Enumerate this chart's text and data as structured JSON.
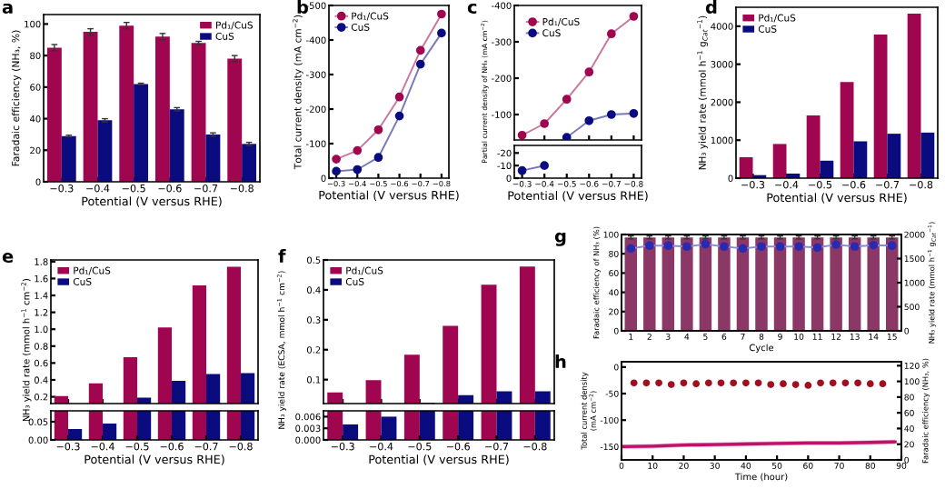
{
  "chart_data": [
    {
      "type": "bar",
      "title": "a",
      "xlabel": "Potential (V versus RHE)",
      "ylabel": "Faradaic efficiency (NH₃, %)",
      "categories": [
        "−0.3",
        "−0.4",
        "−0.5",
        "−0.6",
        "−0.7",
        "−0.8"
      ],
      "ylim": [
        0,
        106
      ],
      "yticks": [
        0,
        20,
        40,
        60,
        80,
        100
      ],
      "legend": "top right",
      "series": [
        {
          "name": "Pd₁/CuS",
          "color": "#a0064f",
          "values": [
            85,
            95,
            99,
            92,
            88,
            78
          ],
          "errors": [
            2,
            2,
            2,
            2,
            1,
            2
          ]
        },
        {
          "name": "CuS",
          "color": "#0b0b80",
          "values": [
            29,
            39,
            62,
            46,
            30,
            24
          ],
          "errors": [
            0.5,
            1,
            0.5,
            1,
            1,
            1
          ]
        }
      ]
    },
    {
      "type": "line",
      "title": "b",
      "xlabel": "Potential (V versus RHE)",
      "ylabel": "Total current density (mA cm$^{−2}$)",
      "categories": [
        "−0.3",
        "−0.4",
        "−0.5",
        "−0.6",
        "−0.7",
        "−0.8"
      ],
      "ylim": [
        0,
        -500
      ],
      "yticks": [
        0,
        -100,
        -200,
        -300,
        -400,
        -500
      ],
      "legend": "top left",
      "marker": "circle",
      "series": [
        {
          "name": "Pd₁/CuS",
          "color": "#a0064f",
          "values": [
            -55,
            -80,
            -140,
            -235,
            -370,
            -475
          ]
        },
        {
          "name": "CuS",
          "color": "#0b0b80",
          "values": [
            -20,
            -25,
            -60,
            -180,
            -330,
            -420
          ]
        }
      ]
    },
    {
      "type": "line",
      "title": "c",
      "ylabel": "Partial current density of NH₃ (mA cm$^{−2}$)",
      "categories": [
        "−0.3",
        "−0.4",
        "−0.5",
        "−0.6",
        "−0.7",
        "−0.8"
      ],
      "ylim": [
        -30,
        -400
      ],
      "yticks": [
        -100,
        -200,
        -300,
        -400
      ],
      "tick_labels": "y",
      "legend": "top left",
      "marker": "circle",
      "series": [
        {
          "name": "Pd₁/CuS",
          "color": "#a0064f",
          "values": [
            -43,
            -75,
            -142,
            -217,
            -322,
            -370
          ]
        },
        {
          "name": "CuS",
          "color": "#0b0b80",
          "values": [
            null,
            null,
            -37,
            -83,
            -100,
            -103
          ]
        }
      ]
    },
    {
      "type": "line",
      "xlabel": "Potential (V versus RHE)",
      "categories": [
        "−0.3",
        "−0.4",
        "−0.5",
        "−0.6",
        "−0.7",
        "−0.8"
      ],
      "ylim": [
        0,
        -26
      ],
      "yticks": [
        0,
        -10,
        -20
      ],
      "marker": "circle",
      "series": [
        {
          "color": "#0b0b80",
          "values": [
            -6,
            -10,
            null,
            null,
            null,
            null
          ]
        }
      ]
    },
    {
      "type": "bar",
      "title": "d",
      "xlabel": "Potential (V versus RHE)",
      "ylabel": "NH₃ yield rate (mmol h$^{−1}$ g$_{Cat}$$^{−1}$)",
      "categories": [
        "−0.3",
        "−0.4",
        "−0.5",
        "−0.6",
        "−0.7",
        "−0.8"
      ],
      "ylim": [
        0,
        4500
      ],
      "yticks": [
        0,
        1000,
        2000,
        3000,
        4000
      ],
      "legend": "top left",
      "series": [
        {
          "name": "Pd₁/CuS",
          "color": "#a0064f",
          "values": [
            550,
            900,
            1650,
            2530,
            3780,
            4330
          ]
        },
        {
          "name": "CuS",
          "color": "#0b0b80",
          "values": [
            80,
            120,
            460,
            970,
            1170,
            1200
          ]
        }
      ]
    },
    {
      "type": "bar",
      "title": "e",
      "ylabel": "NH₃ yield rate (mmol h$^{−1}$ cm$^{−2}$)",
      "categories": [
        "−0.3",
        "−0.4",
        "−0.5",
        "−0.6",
        "−0.7",
        "−0.8"
      ],
      "ylim": [
        0.12,
        1.82
      ],
      "yticks": [
        0.2,
        0.4,
        0.6,
        0.8,
        {
          "value": 1,
          "label": "1.0"
        },
        1.2,
        1.4,
        1.6,
        1.8
      ],
      "tick_labels": "y",
      "legend": "top left",
      "series": [
        {
          "name": "Pd₁/CuS",
          "color": "#a0064f",
          "values": [
            0.21,
            0.36,
            0.67,
            1.02,
            1.52,
            1.74
          ]
        },
        {
          "name": "CuS",
          "color": "#0b0b80",
          "values": [
            null,
            null,
            0.19,
            0.39,
            0.47,
            0.48
          ]
        }
      ]
    },
    {
      "type": "bar",
      "xlabel": "Potential (V versus RHE)",
      "categories": [
        "−0.3",
        "−0.4",
        "−0.5",
        "−0.6",
        "−0.7",
        "−0.8"
      ],
      "ylim": [
        0,
        0.08
      ],
      "yticks": [
        {
          "value": 0,
          "label": "0.00"
        },
        0.05
      ],
      "series": [
        {
          "color": "#a0064f",
          "values": [
            null,
            null,
            null,
            null,
            null,
            null
          ]
        },
        {
          "color": "#0b0b80",
          "values": [
            0.03,
            0.045,
            null,
            null,
            null,
            null
          ]
        }
      ]
    },
    {
      "type": "bar",
      "title": "f",
      "ylabel": "NH₃ yield rate (ECSA, mmol h$^{−1}$ cm$^{−2}$)",
      "categories": [
        "−0.3",
        "−0.4",
        "−0.5",
        "−0.6",
        "−0.7",
        "−0.8"
      ],
      "ylim": [
        0.02,
        0.5
      ],
      "yticks": [
        0.1,
        0.2,
        0.3,
        0.4,
        0.5
      ],
      "tick_labels": "y",
      "legend": "top left",
      "series": [
        {
          "name": "Pd₁/CuS",
          "color": "#a0064f",
          "values": [
            0.057,
            0.098,
            0.183,
            0.28,
            0.417,
            0.478
          ]
        },
        {
          "name": "CuS",
          "color": "#0b0b80",
          "values": [
            null,
            null,
            0.022,
            0.048,
            0.061,
            0.061
          ]
        }
      ]
    },
    {
      "type": "bar",
      "xlabel": "Potential (V versus RHE)",
      "categories": [
        "−0.3",
        "−0.4",
        "−0.5",
        "−0.6",
        "−0.7",
        "−0.8"
      ],
      "ylim": [
        0,
        0.0075
      ],
      "yticks": [
        {
          "value": 0,
          "label": "0.000"
        },
        {
          "value": 0.003,
          "label": "0.003"
        },
        {
          "value": 0.006,
          "label": "0.006"
        }
      ],
      "series": [
        {
          "color": "#a0064f",
          "values": [
            null,
            null,
            null,
            null,
            null,
            null
          ]
        },
        {
          "color": "#0b0b80",
          "values": [
            0.004,
            0.006,
            null,
            null,
            null,
            null
          ]
        }
      ]
    },
    {
      "type": "bar",
      "title": "g",
      "xlabel": "Cycle",
      "ylabel": "Faradaic efficiency of NH₃ (%)",
      "y2label": "NH₃ yield rate (mmol h$^{−1}$ g$_{Cat}$$^{−1}$)",
      "categories": [
        "1",
        "2",
        "3",
        "4",
        "5",
        "6",
        "7",
        "8",
        "9",
        "10",
        "11",
        "12",
        "13",
        "14",
        "15"
      ],
      "ylim": [
        0,
        100
      ],
      "yticks": [
        0,
        20,
        40,
        60,
        80,
        100
      ],
      "y2lim": [
        0,
        2000
      ],
      "y2ticks": [
        0,
        500,
        1000,
        1500,
        2000
      ],
      "marker": "circle",
      "series": [
        {
          "color": "#8c3866",
          "values": [
            97,
            97,
            97,
            97,
            97,
            97,
            97,
            97,
            97,
            97,
            97,
            97,
            97,
            97,
            97
          ],
          "errors": [
            1.5,
            1.5,
            1.5,
            1.5,
            1.5,
            1.5,
            1.5,
            1.5,
            1.5,
            1.5,
            1.5,
            1.5,
            1.5,
            1.5,
            1.5
          ]
        },
        {
          "type": "line",
          "axis": "y2",
          "color": "#2a2ab0",
          "values": [
            1710,
            1770,
            1770,
            1750,
            1800,
            1750,
            1710,
            1750,
            1750,
            1750,
            1730,
            1790,
            1750,
            1780,
            1770
          ]
        }
      ]
    },
    {
      "type": "line",
      "title": "h",
      "xlabel": "Time (hour)",
      "ylabel": "Total current density\n(mA cm$^{−2}$)",
      "y2label": "Faradaic efficiency (NH₃, %)",
      "xlim": [
        0,
        90
      ],
      "xticks": [
        0,
        10,
        20,
        30,
        40,
        50,
        60,
        70,
        80,
        90
      ],
      "ylim": [
        -175,
        10
      ],
      "yticks": [
        0,
        -50,
        -100,
        -150
      ],
      "y2lim": [
        0,
        125
      ],
      "y2ticks": [
        0,
        20,
        40,
        60,
        80,
        100,
        120
      ],
      "series": [
        {
          "color": "#c0106a",
          "x": [
            0,
            10,
            20,
            30,
            40,
            50,
            60,
            70,
            80,
            88
          ],
          "values": [
            -150,
            -149,
            -147,
            -146,
            -145,
            -144,
            -143,
            -143,
            -142,
            -141
          ],
          "lower": [
            -154,
            -153,
            -151,
            -150,
            -149,
            -148,
            -147,
            -147,
            -146,
            -145
          ],
          "upper": [
            -146,
            -145,
            -143,
            -142,
            -141,
            -140,
            -139,
            -139,
            -138,
            -137
          ]
        },
        {
          "type": "scatter",
          "axis": "y2",
          "color": "#a01020",
          "marker": "circle",
          "x": [
            4,
            8,
            12,
            16,
            20,
            24,
            28,
            32,
            36,
            40,
            44,
            48,
            52,
            56,
            60,
            64,
            68,
            72,
            76,
            80,
            84
          ],
          "values": [
            98,
            98,
            98,
            96,
            98,
            97,
            98,
            98,
            98,
            98,
            98,
            96,
            97,
            96,
            95,
            98,
            98,
            98,
            98,
            97,
            97
          ]
        }
      ]
    }
  ]
}
